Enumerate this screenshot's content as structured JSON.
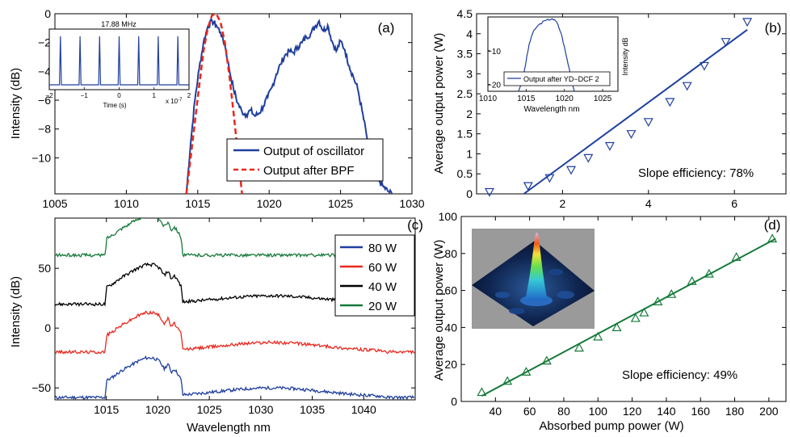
{
  "figure": {
    "panels": [
      {
        "id": "a",
        "panel_label": "(a)",
        "ylabel": "Intensity (dB)",
        "xlabel": "",
        "legend": [
          "Output of oscillator",
          "Output after BPF"
        ],
        "inset": {
          "title": "17.88 MHz",
          "xlabel": "Time (s)",
          "x_multiplier": "x 10",
          "x_exponent": "-7"
        }
      },
      {
        "id": "b",
        "panel_label": "(b)",
        "ylabel": "Average output power (W)",
        "annotation": "Slope efficiency: 78%",
        "inset": {
          "xlabel": "Wavelength nm",
          "ylabel": "Intensity dB",
          "legend": "Output after YD−DCF 2"
        }
      },
      {
        "id": "c",
        "panel_label": "(c)",
        "ylabel": "Intensity (dB)",
        "xlabel": "Wavelength nm",
        "legend": [
          "80 W",
          "60 W",
          "40 W",
          "20 W"
        ]
      },
      {
        "id": "d",
        "panel_label": "(d)",
        "ylabel": "Average output power (W)",
        "xlabel": "Absorbed pump power (W)",
        "annotation": "Slope efficiency: 49%"
      }
    ]
  },
  "chart_data": [
    {
      "panel": "a",
      "type": "line",
      "xlim": [
        1005,
        1030
      ],
      "ylim": [
        -12.5,
        0
      ],
      "xticks": [
        1005,
        1010,
        1015,
        1020,
        1025,
        1030
      ],
      "yticks": [
        0,
        -2,
        -4,
        -6,
        -8,
        -10
      ],
      "colors": {
        "Output of oscillator": "#1f3f9e",
        "Output after BPF": "#e8281e"
      },
      "series": [
        {
          "name": "Output of oscillator",
          "style": "solid",
          "x": [
            1014.2,
            1014.5,
            1014.8,
            1015.1,
            1015.4,
            1015.7,
            1016.0,
            1016.3,
            1016.6,
            1016.9,
            1017.2,
            1017.5,
            1017.8,
            1018.1,
            1018.4,
            1018.7,
            1019.0,
            1019.3,
            1019.6,
            1019.9,
            1020.2,
            1020.5,
            1020.8,
            1021.1,
            1021.4,
            1021.7,
            1022.0,
            1022.3,
            1022.6,
            1022.9,
            1023.2,
            1023.5,
            1023.8,
            1024.1,
            1024.4,
            1024.7,
            1025.0,
            1025.3,
            1025.6,
            1025.9,
            1026.2,
            1026.5,
            1026.8,
            1027.1,
            1027.4,
            1027.7,
            1028.0,
            1028.3,
            1028.6
          ],
          "y": [
            -12.5,
            -9.0,
            -6.0,
            -3.8,
            -2.0,
            -0.9,
            -0.5,
            -0.8,
            -1.3,
            -2.2,
            -3.8,
            -5.2,
            -6.2,
            -6.8,
            -7.0,
            -6.7,
            -7.1,
            -6.9,
            -6.4,
            -5.8,
            -5.1,
            -4.2,
            -3.5,
            -2.9,
            -2.6,
            -2.7,
            -2.3,
            -2.0,
            -1.6,
            -1.4,
            -0.9,
            -0.5,
            -1.2,
            -0.8,
            -1.9,
            -2.6,
            -1.9,
            -2.5,
            -3.6,
            -4.4,
            -5.2,
            -6.7,
            -8.3,
            -10.0,
            -11.0,
            -11.6,
            -12.0,
            -12.3,
            -12.5
          ]
        },
        {
          "name": "Output after BPF",
          "style": "dashed",
          "x": [
            1014.2,
            1014.5,
            1014.8,
            1015.1,
            1015.4,
            1015.7,
            1016.0,
            1016.3,
            1016.6,
            1016.9,
            1017.2,
            1017.5,
            1017.8,
            1018.1
          ],
          "y": [
            -12.5,
            -10.0,
            -7.5,
            -5.0,
            -2.6,
            -1.0,
            -0.1,
            0.0,
            -0.6,
            -2.0,
            -4.2,
            -6.8,
            -9.6,
            -12.5
          ]
        }
      ],
      "inset": {
        "type": "line",
        "xlim": [
          -2,
          2
        ],
        "xticks": [
          -2,
          -1,
          0,
          1,
          2
        ],
        "pulse_times": [
          -1.68,
          -1.12,
          -0.56,
          0.0,
          0.56,
          1.12,
          1.68
        ]
      }
    },
    {
      "panel": "b",
      "type": "scatter",
      "xlim": [
        0,
        7.2
      ],
      "ylim": [
        0,
        4.5
      ],
      "xticks": [
        2,
        4,
        6
      ],
      "yticks": [
        0,
        0.5,
        1,
        1.5,
        2,
        2.5,
        3,
        3.5,
        4,
        4.5
      ],
      "color": "#1f3f9e",
      "series": [
        {
          "name": "",
          "marker": "triangle-down",
          "x": [
            0.3,
            1.2,
            1.7,
            2.2,
            2.6,
            3.1,
            3.6,
            4.0,
            4.5,
            4.9,
            5.3,
            5.8,
            6.3
          ],
          "y": [
            0.05,
            0.2,
            0.4,
            0.6,
            0.9,
            1.2,
            1.5,
            1.8,
            2.3,
            2.7,
            3.2,
            3.8,
            4.3
          ]
        },
        {
          "name": "",
          "style": "fit-line",
          "x": [
            1.1,
            6.3
          ],
          "y": [
            0.0,
            4.1
          ]
        }
      ],
      "inset": {
        "type": "line",
        "xlim": [
          1010,
          1027
        ],
        "ylim": [
          -22,
          0
        ],
        "xticks": [
          1010,
          1015,
          1020,
          1025
        ],
        "yticks": [
          -10,
          -20
        ],
        "x": [
          1014.0,
          1014.6,
          1015.0,
          1015.4,
          1016.0,
          1016.8,
          1017.6,
          1018.4,
          1019.0,
          1019.6,
          1020.1,
          1020.6,
          1021.0,
          1021.3
        ],
        "y": [
          -22,
          -18,
          -13,
          -8,
          -4,
          -2,
          -1,
          -0.5,
          -1.5,
          -5,
          -10,
          -15,
          -19,
          -22
        ]
      }
    },
    {
      "panel": "c",
      "type": "line",
      "xlim": [
        1010,
        1045
      ],
      "ylim": [
        -60,
        92
      ],
      "xticks": [
        1015,
        1020,
        1025,
        1030,
        1035,
        1040
      ],
      "yticks": [
        -50,
        0,
        50
      ],
      "series": [
        {
          "name": "80 W",
          "color": "#1f3f9e",
          "offset": -58,
          "hump": 8
        },
        {
          "name": "60 W",
          "color": "#e8281e",
          "offset": -20,
          "hump": 8
        },
        {
          "name": "40 W",
          "color": "#000000",
          "offset": 20,
          "hump": 7
        },
        {
          "name": "20 W",
          "color": "#167a3a",
          "offset": 61,
          "hump": 0
        }
      ],
      "profile": {
        "x": [
          1010,
          1014.9,
          1015.0,
          1015.6,
          1016.4,
          1017.2,
          1018.0,
          1018.8,
          1019.6,
          1020.2,
          1020.6,
          1021.0,
          1021.3,
          1021.6,
          1022.0,
          1022.3,
          1022.4,
          1045
        ],
        "y": [
          0,
          0,
          14,
          17,
          22,
          26,
          30,
          33,
          33,
          30,
          24,
          28,
          21,
          24,
          19,
          14,
          0,
          0
        ]
      }
    },
    {
      "panel": "d",
      "type": "scatter",
      "xlim": [
        20,
        210
      ],
      "ylim": [
        0,
        100
      ],
      "xticks": [
        40,
        60,
        80,
        100,
        120,
        140,
        160,
        180,
        200
      ],
      "yticks": [
        0,
        20,
        40,
        60,
        80,
        100
      ],
      "color": "#167a3a",
      "series": [
        {
          "name": "",
          "marker": "triangle-up",
          "x": [
            32,
            47,
            58,
            70,
            89,
            100,
            111,
            122,
            127,
            135,
            143,
            155,
            165,
            181,
            202
          ],
          "y": [
            5,
            11,
            16,
            22,
            29,
            35,
            40,
            45,
            48,
            54,
            58,
            65,
            69,
            78,
            88
          ]
        },
        {
          "name": "",
          "style": "fit-line",
          "x": [
            32,
            204
          ],
          "y": [
            3,
            88
          ]
        }
      ]
    }
  ]
}
